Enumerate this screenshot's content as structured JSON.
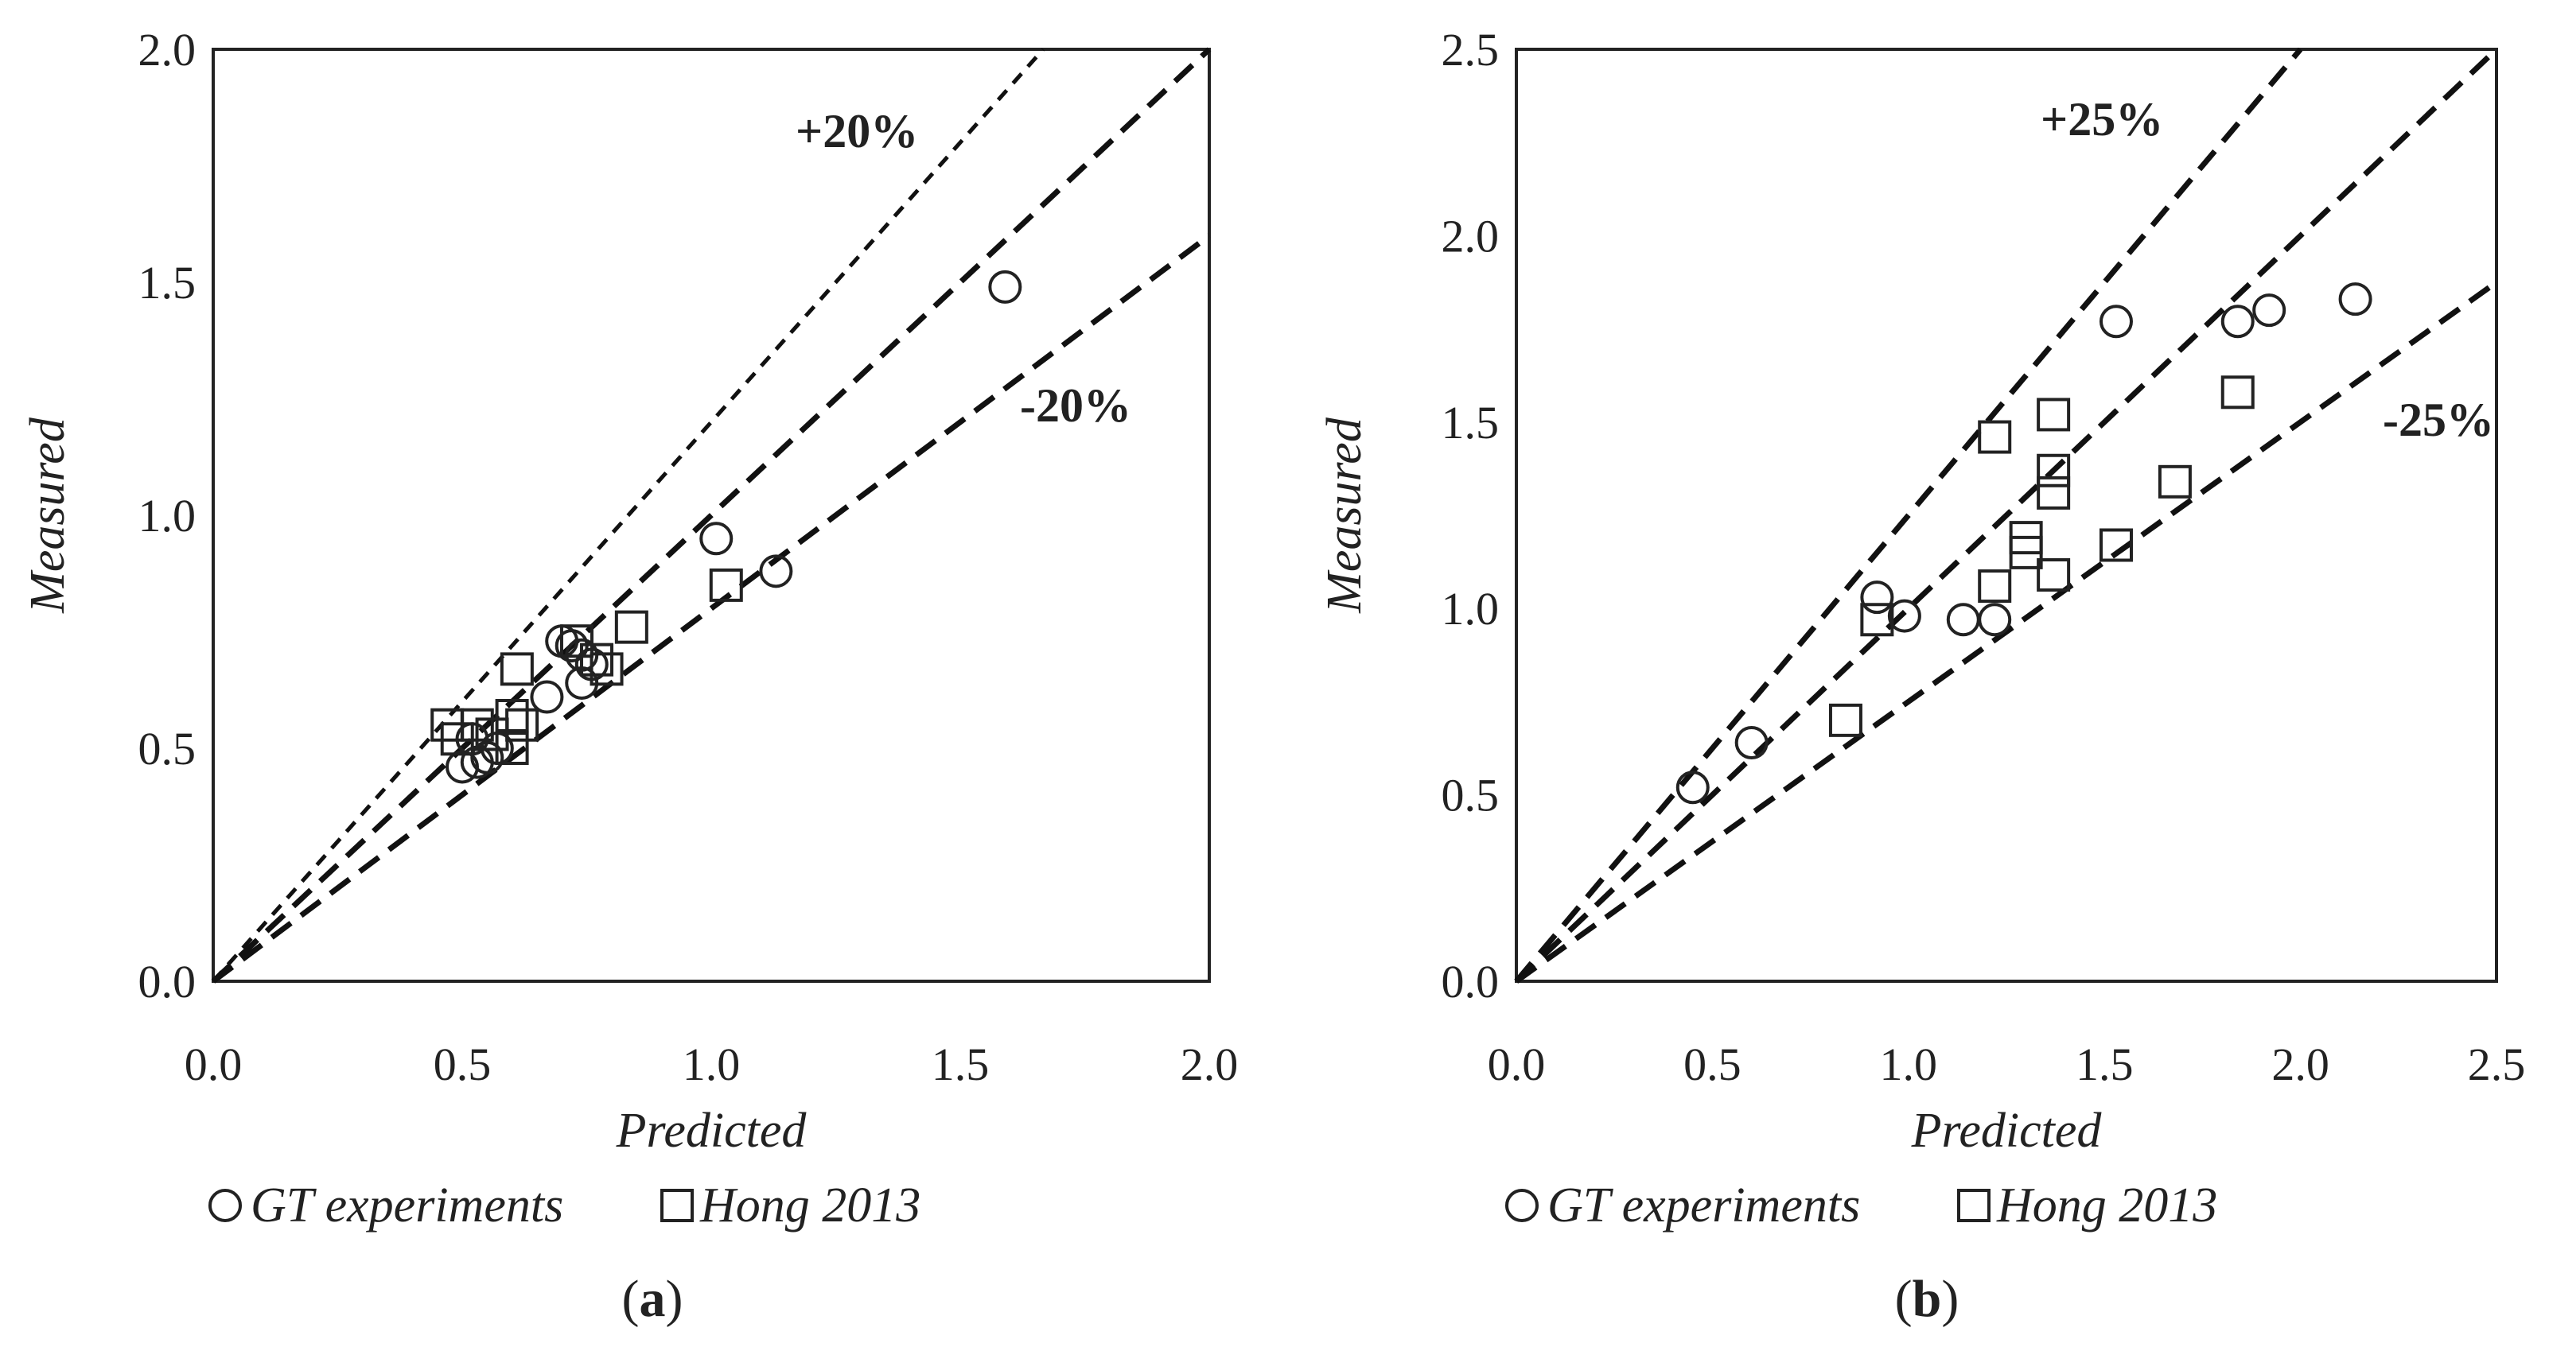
{
  "chart_data": [
    {
      "type": "scatter",
      "panel": "a",
      "xlabel": "Predicted",
      "ylabel": "Measured",
      "xlim": [
        0,
        2.0
      ],
      "ylim": [
        0,
        2.0
      ],
      "xticks": [
        "0.0",
        "0.5",
        "1.0",
        "1.5",
        "2.0"
      ],
      "yticks": [
        "0.0",
        "0.5",
        "1.0",
        "1.5",
        "2.0"
      ],
      "xtick_values": [
        0,
        0.5,
        1.0,
        1.5,
        2.0
      ],
      "ytick_values": [
        0,
        0.5,
        1.0,
        1.5,
        2.0
      ],
      "bounds": {
        "upper_label": "+20%",
        "lower_label": "-20%",
        "upper_slope": 1.2,
        "lower_slope": 0.8
      },
      "series": [
        {
          "name": "GT experiments",
          "marker": "circle",
          "points": [
            [
              0.5,
              0.46
            ],
            [
              0.53,
              0.47
            ],
            [
              0.55,
              0.48
            ],
            [
              0.57,
              0.5
            ],
            [
              0.52,
              0.52
            ],
            [
              0.67,
              0.61
            ],
            [
              0.7,
              0.73
            ],
            [
              0.72,
              0.72
            ],
            [
              0.74,
              0.7
            ],
            [
              0.74,
              0.64
            ],
            [
              0.76,
              0.68
            ],
            [
              1.01,
              0.95
            ],
            [
              1.13,
              0.88
            ],
            [
              1.59,
              1.49
            ]
          ]
        },
        {
          "name": "Hong 2013",
          "marker": "square",
          "points": [
            [
              0.47,
              0.55
            ],
            [
              0.49,
              0.52
            ],
            [
              0.53,
              0.55
            ],
            [
              0.56,
              0.53
            ],
            [
              0.6,
              0.5
            ],
            [
              0.6,
              0.57
            ],
            [
              0.62,
              0.55
            ],
            [
              0.61,
              0.67
            ],
            [
              0.73,
              0.73
            ],
            [
              0.77,
              0.69
            ],
            [
              0.79,
              0.67
            ],
            [
              0.84,
              0.76
            ],
            [
              1.03,
              0.85
            ]
          ]
        }
      ]
    },
    {
      "type": "scatter",
      "panel": "b",
      "xlabel": "Predicted",
      "ylabel": "Measured",
      "xlim": [
        0,
        2.5
      ],
      "ylim": [
        0,
        2.5
      ],
      "xticks": [
        "0.0",
        "0.5",
        "1.0",
        "1.5",
        "2.0",
        "2.5"
      ],
      "yticks": [
        "0.0",
        "0.5",
        "1.0",
        "1.5",
        "2.0",
        "2.5"
      ],
      "xtick_values": [
        0,
        0.5,
        1.0,
        1.5,
        2.0,
        2.5
      ],
      "ytick_values": [
        0,
        0.5,
        1.0,
        1.5,
        2.0,
        2.5
      ],
      "bounds": {
        "upper_label": "+25%",
        "lower_label": "-25%",
        "upper_slope": 1.25,
        "lower_slope": 0.75
      },
      "series": [
        {
          "name": "GT experiments",
          "marker": "circle",
          "points": [
            [
              0.45,
              0.52
            ],
            [
              0.6,
              0.64
            ],
            [
              0.92,
              1.03
            ],
            [
              0.99,
              0.98
            ],
            [
              1.14,
              0.97
            ],
            [
              1.22,
              0.97
            ],
            [
              1.53,
              1.77
            ],
            [
              1.84,
              1.77
            ],
            [
              1.92,
              1.8
            ],
            [
              2.14,
              1.83
            ]
          ]
        },
        {
          "name": "Hong 2013",
          "marker": "square",
          "points": [
            [
              0.84,
              0.7
            ],
            [
              0.92,
              0.97
            ],
            [
              1.22,
              1.46
            ],
            [
              1.22,
              1.06
            ],
            [
              1.3,
              1.19
            ],
            [
              1.3,
              1.15
            ],
            [
              1.37,
              1.52
            ],
            [
              1.37,
              1.37
            ],
            [
              1.37,
              1.31
            ],
            [
              1.37,
              1.09
            ],
            [
              1.53,
              1.17
            ],
            [
              1.68,
              1.34
            ],
            [
              1.84,
              1.58
            ]
          ]
        }
      ]
    }
  ],
  "legend": {
    "circle_label": "GT experiments",
    "square_label": "Hong 2013"
  },
  "captions": {
    "a": {
      "open": "(",
      "letter": "a",
      "close": ")"
    },
    "b": {
      "open": "(",
      "letter": "b",
      "close": ")"
    }
  }
}
